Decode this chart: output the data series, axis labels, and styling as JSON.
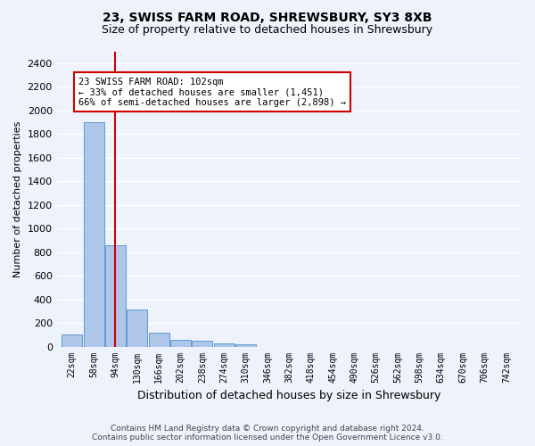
{
  "title1": "23, SWISS FARM ROAD, SHREWSBURY, SY3 8XB",
  "title2": "Size of property relative to detached houses in Shrewsbury",
  "xlabel": "Distribution of detached houses by size in Shrewsbury",
  "ylabel": "Number of detached properties",
  "bin_labels": [
    "22sqm",
    "58sqm",
    "94sqm",
    "130sqm",
    "166sqm",
    "202sqm",
    "238sqm",
    "274sqm",
    "310sqm",
    "346sqm",
    "382sqm",
    "418sqm",
    "454sqm",
    "490sqm",
    "526sqm",
    "562sqm",
    "598sqm",
    "634sqm",
    "670sqm",
    "706sqm",
    "742sqm"
  ],
  "bar_values": [
    100,
    1900,
    860,
    315,
    115,
    60,
    50,
    30,
    20,
    0,
    0,
    0,
    0,
    0,
    0,
    0,
    0,
    0,
    0,
    0,
    0
  ],
  "bar_color": "#aec6e8",
  "bar_edge_color": "#5b9bd5",
  "property_bin_index": 2,
  "annotation_text": "23 SWISS FARM ROAD: 102sqm\n← 33% of detached houses are smaller (1,451)\n66% of semi-detached houses are larger (2,898) →",
  "annotation_box_color": "#ffffff",
  "annotation_box_edge_color": "#cc0000",
  "vline_color": "#cc0000",
  "ylim": [
    0,
    2500
  ],
  "yticks": [
    0,
    200,
    400,
    600,
    800,
    1000,
    1200,
    1400,
    1600,
    1800,
    2000,
    2200,
    2400
  ],
  "footer1": "Contains HM Land Registry data © Crown copyright and database right 2024.",
  "footer2": "Contains public sector information licensed under the Open Government Licence v3.0.",
  "bg_color": "#eef2fb",
  "grid_color": "#ffffff"
}
